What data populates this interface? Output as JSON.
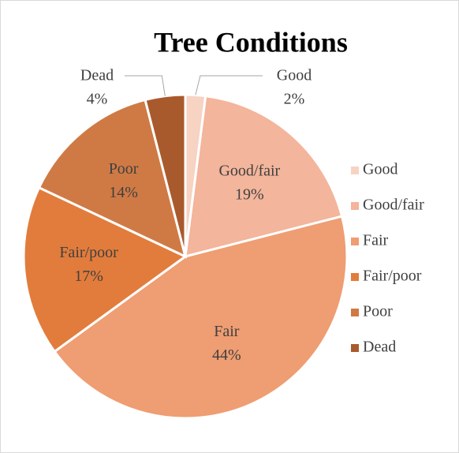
{
  "chart_data": {
    "type": "pie",
    "title": "Tree Conditions",
    "categories": [
      "Good",
      "Good/fair",
      "Fair",
      "Fair/poor",
      "Poor",
      "Dead"
    ],
    "values": [
      2,
      19,
      44,
      17,
      14,
      4
    ],
    "value_labels": [
      "2%",
      "19%",
      "44%",
      "17%",
      "14%",
      "4%"
    ],
    "colors": [
      "#f7d3c3",
      "#f3b59b",
      "#ef9d72",
      "#e27c3c",
      "#cf7a45",
      "#a95a2c"
    ],
    "legend": "right"
  }
}
